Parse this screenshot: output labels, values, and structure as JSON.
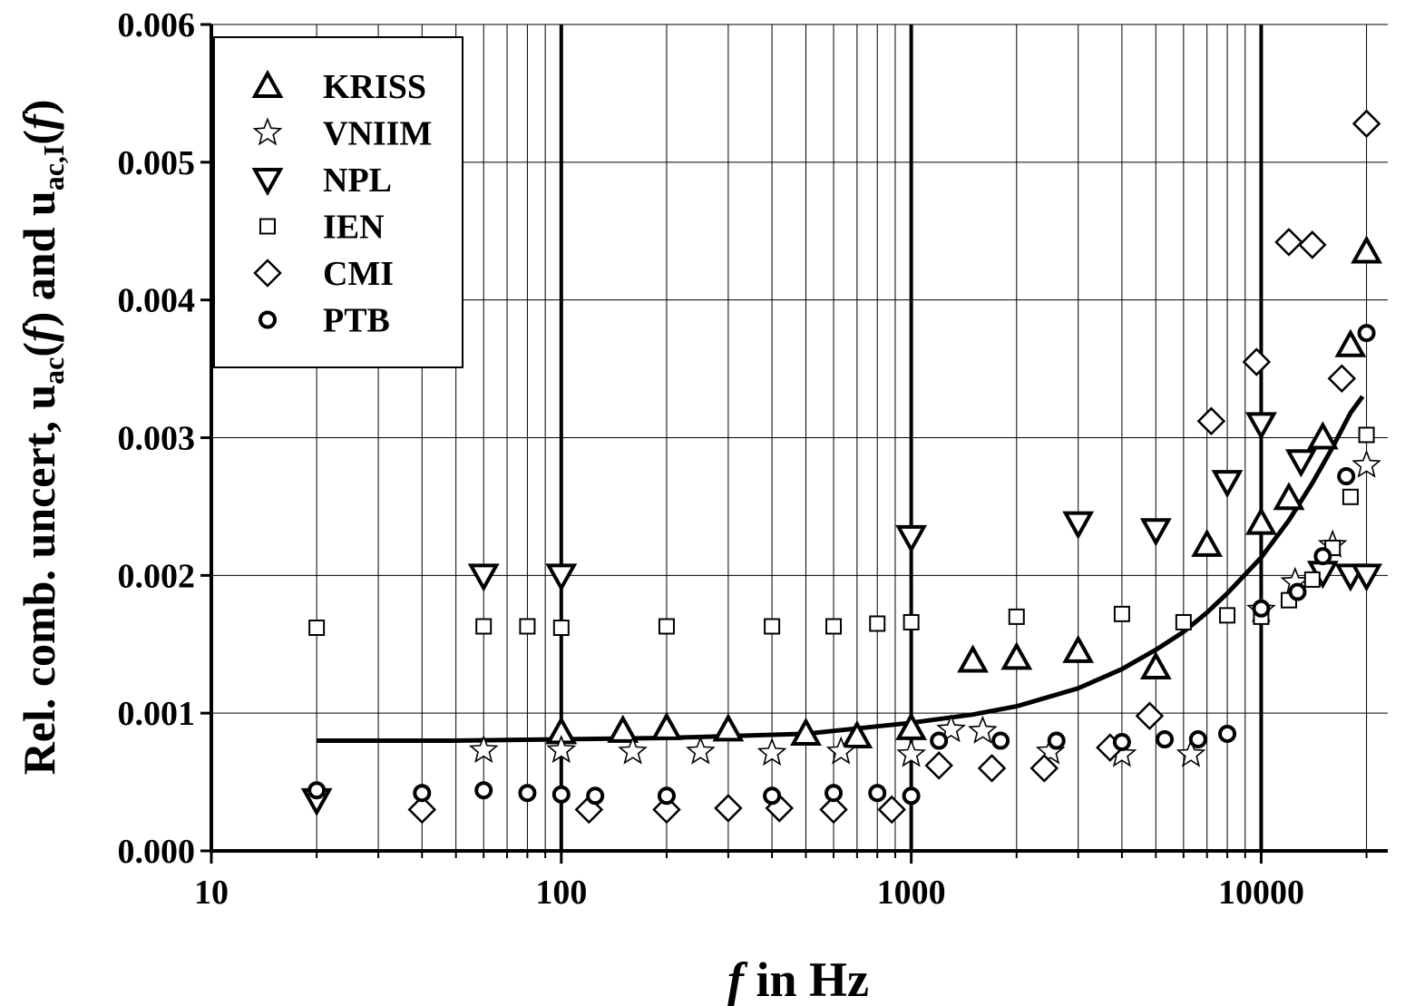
{
  "chart_data": {
    "type": "scatter",
    "xscale": "log",
    "xlim": [
      10,
      23000
    ],
    "ylim": [
      0,
      0.006
    ],
    "grid": true,
    "legend_position": "top-left",
    "xlabel_italic": "f",
    "xlabel_rest": "  in Hz",
    "ylabel": {
      "prefix": "Rel. comb. uncert, u",
      "sub1": "ac",
      "mid1": "(",
      "ital1": "f",
      "mid2": ") and u",
      "sub2": "ac,I",
      "mid3": "(",
      "ital2": "f",
      "mid4": ")"
    },
    "x_tick_labels": [
      {
        "value": 10,
        "label": "10"
      },
      {
        "value": 100,
        "label": "100"
      },
      {
        "value": 1000,
        "label": "1000"
      },
      {
        "value": 10000,
        "label": "10000"
      }
    ],
    "y_tick_labels": [
      {
        "value": 0.0,
        "label": "0.000"
      },
      {
        "value": 0.001,
        "label": "0.001"
      },
      {
        "value": 0.002,
        "label": "0.002"
      },
      {
        "value": 0.003,
        "label": "0.003"
      },
      {
        "value": 0.004,
        "label": "0.004"
      },
      {
        "value": 0.005,
        "label": "0.005"
      },
      {
        "value": 0.006,
        "label": "0.006"
      }
    ],
    "series": [
      {
        "name": "KRISS",
        "marker": "triangle-up",
        "points": [
          [
            100,
            0.00086
          ],
          [
            150,
            0.00087
          ],
          [
            200,
            0.00089
          ],
          [
            300,
            0.00088
          ],
          [
            500,
            0.00085
          ],
          [
            700,
            0.00083
          ],
          [
            1000,
            0.00089
          ],
          [
            1500,
            0.00138
          ],
          [
            2000,
            0.0014
          ],
          [
            3000,
            0.00145
          ],
          [
            5000,
            0.00133
          ],
          [
            7000,
            0.00222
          ],
          [
            10000,
            0.00238
          ],
          [
            12000,
            0.00256
          ],
          [
            15000,
            0.003
          ],
          [
            18000,
            0.00367
          ],
          [
            20000,
            0.00435
          ]
        ]
      },
      {
        "name": "VNIIM",
        "marker": "star",
        "points": [
          [
            60,
            0.00073
          ],
          [
            100,
            0.00073
          ],
          [
            160,
            0.00072
          ],
          [
            250,
            0.00072
          ],
          [
            400,
            0.00071
          ],
          [
            630,
            0.00072
          ],
          [
            1000,
            0.0007
          ],
          [
            1300,
            0.00088
          ],
          [
            1600,
            0.00087
          ],
          [
            2500,
            0.00072
          ],
          [
            4000,
            0.0007
          ],
          [
            6300,
            0.0007
          ],
          [
            10000,
            0.00175
          ],
          [
            12500,
            0.00195
          ],
          [
            16000,
            0.00222
          ],
          [
            20000,
            0.0028
          ]
        ]
      },
      {
        "name": "NPL",
        "marker": "triangle-down",
        "points": [
          [
            20,
            0.00037
          ],
          [
            60,
            0.002
          ],
          [
            100,
            0.002
          ],
          [
            1000,
            0.00228
          ],
          [
            3000,
            0.00238
          ],
          [
            5000,
            0.00233
          ],
          [
            8000,
            0.00268
          ],
          [
            10000,
            0.0031
          ],
          [
            13000,
            0.00283
          ],
          [
            15000,
            0.00202
          ],
          [
            18000,
            0.002
          ],
          [
            20000,
            0.002
          ]
        ]
      },
      {
        "name": "IEN",
        "marker": "square",
        "points": [
          [
            20,
            0.00162
          ],
          [
            60,
            0.00163
          ],
          [
            80,
            0.00163
          ],
          [
            100,
            0.00162
          ],
          [
            200,
            0.00163
          ],
          [
            400,
            0.00163
          ],
          [
            600,
            0.00163
          ],
          [
            800,
            0.00165
          ],
          [
            1000,
            0.00166
          ],
          [
            2000,
            0.0017
          ],
          [
            4000,
            0.00172
          ],
          [
            6000,
            0.00166
          ],
          [
            8000,
            0.00171
          ],
          [
            10000,
            0.0017
          ],
          [
            12000,
            0.00182
          ],
          [
            14000,
            0.00197
          ],
          [
            16000,
            0.0022
          ],
          [
            18000,
            0.00257
          ],
          [
            20000,
            0.00302
          ]
        ]
      },
      {
        "name": "CMI",
        "marker": "diamond",
        "points": [
          [
            40,
            0.0003
          ],
          [
            120,
            0.0003
          ],
          [
            200,
            0.0003
          ],
          [
            300,
            0.00031
          ],
          [
            420,
            0.00031
          ],
          [
            600,
            0.0003
          ],
          [
            880,
            0.0003
          ],
          [
            1200,
            0.00062
          ],
          [
            1700,
            0.0006
          ],
          [
            2400,
            0.0006
          ],
          [
            3700,
            0.00075
          ],
          [
            4800,
            0.00098
          ],
          [
            7200,
            0.00312
          ],
          [
            9700,
            0.00355
          ],
          [
            12000,
            0.00442
          ],
          [
            14000,
            0.0044
          ],
          [
            17000,
            0.00343
          ],
          [
            20000,
            0.00528
          ]
        ]
      },
      {
        "name": "PTB",
        "marker": "circle",
        "points": [
          [
            20,
            0.00044
          ],
          [
            40,
            0.00042
          ],
          [
            60,
            0.00044
          ],
          [
            80,
            0.00042
          ],
          [
            100,
            0.00041
          ],
          [
            125,
            0.0004
          ],
          [
            200,
            0.0004
          ],
          [
            400,
            0.0004
          ],
          [
            600,
            0.00042
          ],
          [
            800,
            0.00042
          ],
          [
            1000,
            0.0004
          ],
          [
            1200,
            0.0008
          ],
          [
            1800,
            0.0008
          ],
          [
            2600,
            0.0008
          ],
          [
            4000,
            0.00079
          ],
          [
            5300,
            0.00081
          ],
          [
            6600,
            0.00081
          ],
          [
            8000,
            0.00085
          ],
          [
            10000,
            0.00176
          ],
          [
            12700,
            0.00188
          ],
          [
            15000,
            0.00214
          ],
          [
            17500,
            0.00272
          ],
          [
            20000,
            0.00376
          ]
        ]
      }
    ],
    "fit_curve": {
      "points": [
        [
          20,
          0.0008
        ],
        [
          50,
          0.0008
        ],
        [
          100,
          0.00081
        ],
        [
          200,
          0.00082
        ],
        [
          500,
          0.00085
        ],
        [
          1000,
          0.00093
        ],
        [
          1500,
          0.00099
        ],
        [
          2000,
          0.00105
        ],
        [
          3000,
          0.00118
        ],
        [
          4000,
          0.00132
        ],
        [
          5000,
          0.00146
        ],
        [
          6000,
          0.00159
        ],
        [
          7000,
          0.00173
        ],
        [
          8000,
          0.00187
        ],
        [
          10000,
          0.00213
        ],
        [
          12000,
          0.0024
        ],
        [
          14000,
          0.00267
        ],
        [
          16000,
          0.00293
        ],
        [
          18000,
          0.00318
        ],
        [
          19500,
          0.0033
        ]
      ]
    }
  }
}
